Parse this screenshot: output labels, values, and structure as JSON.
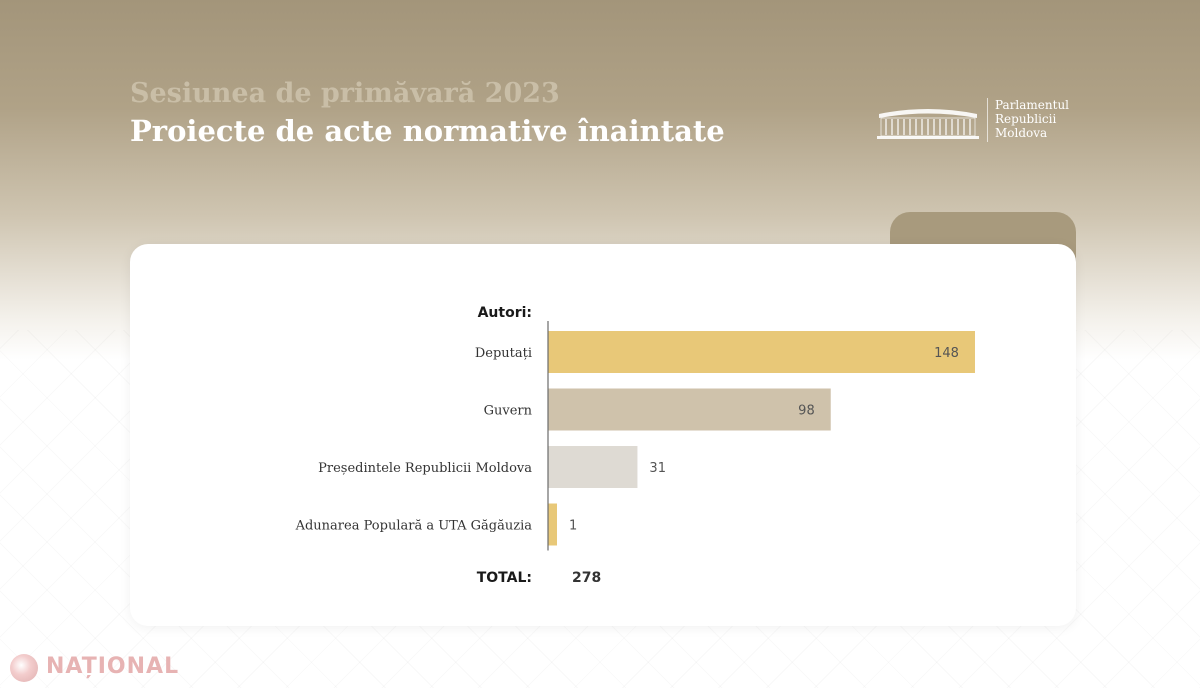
{
  "header": {
    "subtitle": "Sesiunea de primăvară 2023",
    "title": "Proiecte de acte normative înaintate"
  },
  "logo": {
    "icon": "parliament-building-icon",
    "lines": [
      "Parlamentul",
      "Republicii",
      "Moldova"
    ]
  },
  "watermark": {
    "icon": "national-logo-icon",
    "text": "NAȚIONAL"
  },
  "colors": {
    "gold": "#e8c878",
    "taupe": "#cfc2ab",
    "light_grey": "#dedad3"
  },
  "chart_data": {
    "type": "bar",
    "orientation": "horizontal",
    "category_header": "Autori:",
    "categories": [
      "Deputați",
      "Guvern",
      "Președintele Republicii Moldova",
      "Adunarea Populară a UTA Găgăuzia"
    ],
    "values": [
      148,
      98,
      31,
      1
    ],
    "bar_colors": [
      "#e8c878",
      "#cfc2ab",
      "#dedad3",
      "#e8c878"
    ],
    "value_label_position": [
      "inside",
      "inside",
      "outside",
      "outside"
    ],
    "total_label": "TOTAL:",
    "total_value": "278",
    "title": "",
    "xlabel": "",
    "ylabel": "",
    "grid": false,
    "legend": "none"
  }
}
